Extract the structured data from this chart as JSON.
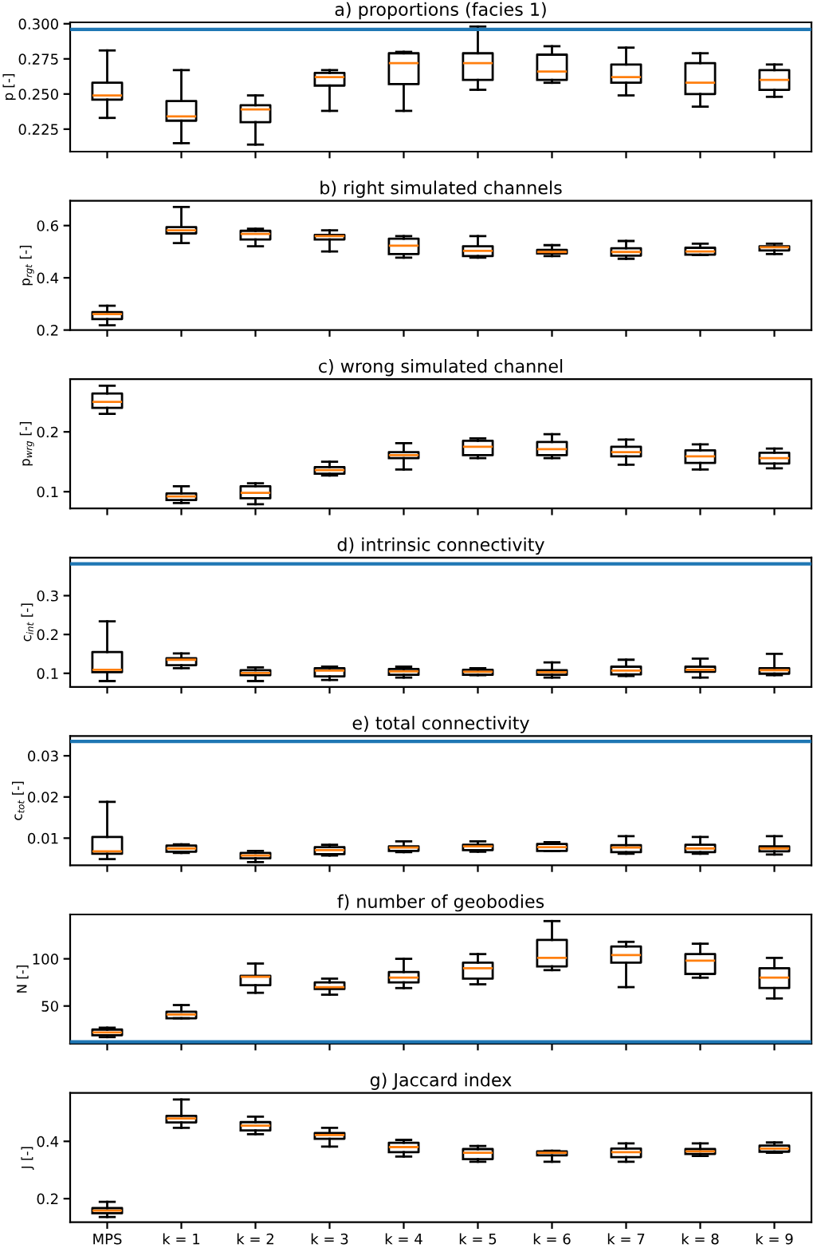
{
  "chart_data": [
    {
      "type": "box",
      "title": "a) proportions (facies 1)",
      "ylabel": "p [-]",
      "categories": [
        null,
        null,
        null,
        null,
        null,
        null,
        null,
        null,
        null,
        null
      ],
      "ylim": [
        0.209,
        0.301
      ],
      "yticks": [
        {
          "value": 0.225,
          "label": "0.225"
        },
        {
          "value": 0.25,
          "label": "0.250"
        },
        {
          "value": 0.275,
          "label": "0.275"
        },
        {
          "value": 0.3,
          "label": "0.300"
        }
      ],
      "tick_labels": "y",
      "ref_lines": [
        {
          "axis": "y",
          "value": 0.296,
          "color": "#1f77b4"
        }
      ],
      "boxes": [
        {
          "low": 0.233,
          "q1": 0.246,
          "median": 0.249,
          "q3": 0.258,
          "high": 0.281
        },
        {
          "low": 0.215,
          "q1": 0.231,
          "median": 0.234,
          "q3": 0.245,
          "high": 0.267
        },
        {
          "low": 0.214,
          "q1": 0.23,
          "median": 0.239,
          "q3": 0.242,
          "high": 0.249
        },
        {
          "low": 0.238,
          "q1": 0.256,
          "median": 0.262,
          "q3": 0.265,
          "high": 0.267
        },
        {
          "low": 0.238,
          "q1": 0.257,
          "median": 0.272,
          "q3": 0.279,
          "high": 0.28
        },
        {
          "low": 0.253,
          "q1": 0.26,
          "median": 0.272,
          "q3": 0.279,
          "high": 0.298
        },
        {
          "low": 0.258,
          "q1": 0.26,
          "median": 0.266,
          "q3": 0.278,
          "high": 0.284
        },
        {
          "low": 0.249,
          "q1": 0.258,
          "median": 0.262,
          "q3": 0.271,
          "high": 0.283
        },
        {
          "low": 0.241,
          "q1": 0.25,
          "median": 0.258,
          "q3": 0.272,
          "high": 0.279
        },
        {
          "low": 0.248,
          "q1": 0.253,
          "median": 0.26,
          "q3": 0.267,
          "high": 0.271
        }
      ]
    },
    {
      "type": "box",
      "title": "b) right simulated channels",
      "ylabel": "p$_{rgt}$ [-]",
      "categories": [
        null,
        null,
        null,
        null,
        null,
        null,
        null,
        null,
        null,
        null
      ],
      "ylim": [
        0.2,
        0.695
      ],
      "yticks": [
        0.2,
        0.4,
        0.6
      ],
      "tick_labels": "y",
      "boxes": [
        {
          "low": 0.218,
          "q1": 0.242,
          "median": 0.261,
          "q3": 0.269,
          "high": 0.293
        },
        {
          "low": 0.533,
          "q1": 0.57,
          "median": 0.582,
          "q3": 0.594,
          "high": 0.671
        },
        {
          "low": 0.521,
          "q1": 0.547,
          "median": 0.568,
          "q3": 0.58,
          "high": 0.588
        },
        {
          "low": 0.501,
          "q1": 0.547,
          "median": 0.56,
          "q3": 0.564,
          "high": 0.582
        },
        {
          "low": 0.477,
          "q1": 0.491,
          "median": 0.523,
          "q3": 0.55,
          "high": 0.56
        },
        {
          "low": 0.477,
          "q1": 0.483,
          "median": 0.503,
          "q3": 0.521,
          "high": 0.56
        },
        {
          "low": 0.483,
          "q1": 0.493,
          "median": 0.499,
          "q3": 0.507,
          "high": 0.525
        },
        {
          "low": 0.473,
          "q1": 0.485,
          "median": 0.499,
          "q3": 0.513,
          "high": 0.541
        },
        {
          "low": 0.487,
          "q1": 0.489,
          "median": 0.501,
          "q3": 0.515,
          "high": 0.531
        },
        {
          "low": 0.491,
          "q1": 0.505,
          "median": 0.517,
          "q3": 0.521,
          "high": 0.531
        }
      ]
    },
    {
      "type": "box",
      "title": "c) wrong simulated channel",
      "ylabel": "p$_{wrg}$ [-]",
      "categories": [
        null,
        null,
        null,
        null,
        null,
        null,
        null,
        null,
        null,
        null
      ],
      "ylim": [
        0.072,
        0.288
      ],
      "yticks": [
        0.1,
        0.2
      ],
      "tick_labels": "y",
      "boxes": [
        {
          "low": 0.23,
          "q1": 0.24,
          "median": 0.25,
          "q3": 0.264,
          "high": 0.277
        },
        {
          "low": 0.081,
          "q1": 0.086,
          "median": 0.092,
          "q3": 0.097,
          "high": 0.109
        },
        {
          "low": 0.079,
          "q1": 0.089,
          "median": 0.098,
          "q3": 0.109,
          "high": 0.114
        },
        {
          "low": 0.127,
          "q1": 0.13,
          "median": 0.136,
          "q3": 0.141,
          "high": 0.15
        },
        {
          "low": 0.137,
          "q1": 0.156,
          "median": 0.161,
          "q3": 0.166,
          "high": 0.181
        },
        {
          "low": 0.156,
          "q1": 0.161,
          "median": 0.175,
          "q3": 0.185,
          "high": 0.189
        },
        {
          "low": 0.156,
          "q1": 0.161,
          "median": 0.171,
          "q3": 0.183,
          "high": 0.196
        },
        {
          "low": 0.145,
          "q1": 0.159,
          "median": 0.166,
          "q3": 0.175,
          "high": 0.187
        },
        {
          "low": 0.137,
          "q1": 0.148,
          "median": 0.159,
          "q3": 0.169,
          "high": 0.179
        },
        {
          "low": 0.139,
          "q1": 0.147,
          "median": 0.156,
          "q3": 0.165,
          "high": 0.172
        }
      ]
    },
    {
      "type": "box",
      "title": "d) intrinsic connectivity",
      "ylabel": "c$_{int}$ [-]",
      "categories": [
        null,
        null,
        null,
        null,
        null,
        null,
        null,
        null,
        null,
        null
      ],
      "ylim": [
        0.065,
        0.398
      ],
      "yticks": [
        0.1,
        0.2,
        0.3
      ],
      "tick_labels": "y",
      "ref_lines": [
        {
          "axis": "y",
          "value": 0.382,
          "color": "#1f77b4"
        }
      ],
      "boxes": [
        {
          "low": 0.08,
          "q1": 0.103,
          "median": 0.109,
          "q3": 0.155,
          "high": 0.234
        },
        {
          "low": 0.113,
          "q1": 0.121,
          "median": 0.135,
          "q3": 0.139,
          "high": 0.151
        },
        {
          "low": 0.08,
          "q1": 0.095,
          "median": 0.101,
          "q3": 0.108,
          "high": 0.115
        },
        {
          "low": 0.083,
          "q1": 0.092,
          "median": 0.107,
          "q3": 0.113,
          "high": 0.117
        },
        {
          "low": 0.089,
          "q1": 0.096,
          "median": 0.105,
          "q3": 0.111,
          "high": 0.117
        },
        {
          "low": 0.095,
          "q1": 0.096,
          "median": 0.104,
          "q3": 0.109,
          "high": 0.113
        },
        {
          "low": 0.089,
          "q1": 0.096,
          "median": 0.103,
          "q3": 0.108,
          "high": 0.128
        },
        {
          "low": 0.093,
          "q1": 0.097,
          "median": 0.107,
          "q3": 0.117,
          "high": 0.135
        },
        {
          "low": 0.089,
          "q1": 0.104,
          "median": 0.109,
          "q3": 0.117,
          "high": 0.138
        },
        {
          "low": 0.095,
          "q1": 0.099,
          "median": 0.108,
          "q3": 0.113,
          "high": 0.15
        }
      ]
    },
    {
      "type": "box",
      "title": "e) total connectivity",
      "ylabel": "c$_{tot}$ [-]",
      "categories": [
        null,
        null,
        null,
        null,
        null,
        null,
        null,
        null,
        null,
        null
      ],
      "ylim": [
        0.0034,
        0.0348
      ],
      "yticks": [
        0.01,
        0.02,
        0.03
      ],
      "tick_labels": "y",
      "ref_lines": [
        {
          "axis": "y",
          "value": 0.0335,
          "color": "#1f77b4"
        }
      ],
      "boxes": [
        {
          "low": 0.0049,
          "q1": 0.0062,
          "median": 0.0068,
          "q3": 0.0103,
          "high": 0.0188
        },
        {
          "low": 0.0064,
          "q1": 0.0067,
          "median": 0.0075,
          "q3": 0.0082,
          "high": 0.0085
        },
        {
          "low": 0.0042,
          "q1": 0.0051,
          "median": 0.0058,
          "q3": 0.0064,
          "high": 0.0069
        },
        {
          "low": 0.0058,
          "q1": 0.0061,
          "median": 0.0071,
          "q3": 0.0078,
          "high": 0.0084
        },
        {
          "low": 0.0066,
          "q1": 0.0069,
          "median": 0.0077,
          "q3": 0.008,
          "high": 0.0092
        },
        {
          "low": 0.0067,
          "q1": 0.0071,
          "median": 0.008,
          "q3": 0.0084,
          "high": 0.0092
        },
        {
          "low": 0.0069,
          "q1": 0.0069,
          "median": 0.0078,
          "q3": 0.0086,
          "high": 0.009
        },
        {
          "low": 0.0062,
          "q1": 0.0066,
          "median": 0.0077,
          "q3": 0.0083,
          "high": 0.0105
        },
        {
          "low": 0.0062,
          "q1": 0.0066,
          "median": 0.0075,
          "q3": 0.0084,
          "high": 0.0103
        },
        {
          "low": 0.006,
          "q1": 0.0068,
          "median": 0.0075,
          "q3": 0.008,
          "high": 0.0105
        }
      ]
    },
    {
      "type": "box",
      "title": "f) number of geobodies",
      "ylabel": "N [-]",
      "categories": [
        null,
        null,
        null,
        null,
        null,
        null,
        null,
        null,
        null,
        null
      ],
      "ylim": [
        10,
        147
      ],
      "yticks": [
        50,
        100
      ],
      "tick_labels": "y",
      "ref_lines": [
        {
          "axis": "y",
          "value": 12,
          "color": "#1f77b4"
        }
      ],
      "boxes": [
        {
          "low": 17,
          "q1": 19,
          "median": 22,
          "q3": 25,
          "high": 27
        },
        {
          "low": 37,
          "q1": 37,
          "median": 41,
          "q3": 44,
          "high": 51
        },
        {
          "low": 64,
          "q1": 72,
          "median": 81,
          "q3": 82,
          "high": 95
        },
        {
          "low": 62,
          "q1": 68,
          "median": 70,
          "q3": 75,
          "high": 79
        },
        {
          "low": 69,
          "q1": 75,
          "median": 80,
          "q3": 86,
          "high": 100
        },
        {
          "low": 73,
          "q1": 79,
          "median": 90,
          "q3": 96,
          "high": 105
        },
        {
          "low": 88,
          "q1": 92,
          "median": 101,
          "q3": 120,
          "high": 140
        },
        {
          "low": 70,
          "q1": 96,
          "median": 104,
          "q3": 113,
          "high": 118
        },
        {
          "low": 80,
          "q1": 84,
          "median": 98,
          "q3": 105,
          "high": 116
        },
        {
          "low": 58,
          "q1": 69,
          "median": 80,
          "q3": 90,
          "high": 101
        }
      ]
    },
    {
      "type": "box",
      "title": "g) Jaccard index",
      "ylabel": "J [-]",
      "categories": [
        "MPS",
        "k = 1",
        "k = 2",
        "k = 3",
        "k = 4",
        "k = 5",
        "k = 6",
        "k = 7",
        "k = 8",
        "k = 9"
      ],
      "ylim": [
        0.118,
        0.569
      ],
      "yticks": [
        0.2,
        0.4
      ],
      "boxes": [
        {
          "low": 0.136,
          "q1": 0.149,
          "median": 0.158,
          "q3": 0.167,
          "high": 0.189
        },
        {
          "low": 0.447,
          "q1": 0.466,
          "median": 0.48,
          "q3": 0.489,
          "high": 0.546
        },
        {
          "low": 0.425,
          "q1": 0.438,
          "median": 0.455,
          "q3": 0.467,
          "high": 0.486
        },
        {
          "low": 0.382,
          "q1": 0.409,
          "median": 0.422,
          "q3": 0.429,
          "high": 0.447
        },
        {
          "low": 0.347,
          "q1": 0.362,
          "median": 0.38,
          "q3": 0.395,
          "high": 0.405
        },
        {
          "low": 0.329,
          "q1": 0.338,
          "median": 0.36,
          "q3": 0.373,
          "high": 0.384
        },
        {
          "low": 0.329,
          "q1": 0.351,
          "median": 0.36,
          "q3": 0.365,
          "high": 0.367
        },
        {
          "low": 0.329,
          "q1": 0.345,
          "median": 0.362,
          "q3": 0.375,
          "high": 0.393
        },
        {
          "low": 0.349,
          "q1": 0.356,
          "median": 0.365,
          "q3": 0.373,
          "high": 0.393
        },
        {
          "low": 0.36,
          "q1": 0.364,
          "median": 0.375,
          "q3": 0.385,
          "high": 0.396
        }
      ]
    }
  ]
}
